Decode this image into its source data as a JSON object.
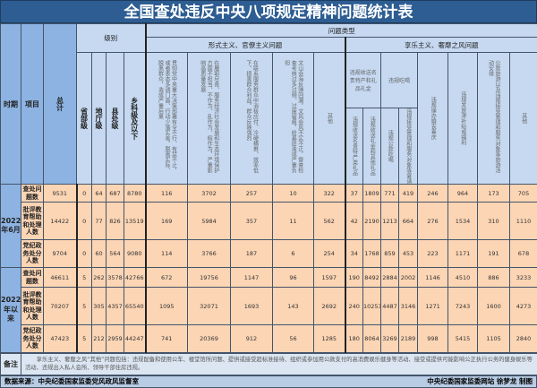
{
  "title": "全国查处违反中央八项规定精神问题统计表",
  "headers": {
    "period": "时期",
    "item": "项目",
    "total": "总计",
    "level": "级别",
    "levels": [
      "省部级",
      "地厅级",
      "县处级",
      "乡科级及以下"
    ],
    "problem_type": "问题类型",
    "formalism": "形式主义、官僚主义问题",
    "formalism_cols": [
      "贯彻党中央重大决策部署有令不行、有禁不止，或者表态多调门高、行动少落实差，脱离实际、脱离群众，造成严重后果",
      "在履职尽责、服务经济社会发展和生态环境保护方面不担当、不作为、乱作为、假作为，严重影响高质量发展",
      "在联系服务群众中消极应付、冷硬横推、效率低下，损害群众利益，群众反映强烈",
      "文山会海反弹回潮，文风会风不实不正，督查检查考核过多过频、过度留痕，给基层造成严重负担",
      "其他"
    ],
    "hedonism": "享乐主义、奢靡之风问题",
    "gifts": "违规收送名贵特产和礼品礼金",
    "gifts_sub": [
      "违规收送名贵特产类礼品",
      "违规收送礼金和其他礼品"
    ],
    "dining": "违规吃喝",
    "dining_sub": [
      "违规公款吃喝",
      "违规接受管理和服务对象等宴请"
    ],
    "hedonism_cols": [
      "违规操办婚丧喜庆",
      "违规发放津补贴或福利",
      "公款旅游以及违规接受管理和服务对象等旅游活动安排",
      "其他"
    ]
  },
  "periods": [
    {
      "label": "2022年6月",
      "rows": [
        {
          "item": "查处问题数",
          "values": [
            9531,
            0,
            64,
            687,
            8780,
            116,
            3702,
            257,
            10,
            322,
            37,
            1809,
            771,
            419,
            246,
            964,
            173,
            705
          ]
        },
        {
          "item": "批评教育帮助和处理人数",
          "values": [
            14422,
            0,
            77,
            826,
            13519,
            169,
            5984,
            357,
            11,
            562,
            42,
            2190,
            1213,
            664,
            276,
            1534,
            310,
            1110
          ]
        },
        {
          "item": "党纪政务处分人数",
          "values": [
            9704,
            0,
            60,
            564,
            9080,
            114,
            3766,
            187,
            6,
            254,
            34,
            1768,
            859,
            453,
            223,
            1171,
            191,
            678
          ]
        }
      ]
    },
    {
      "label": "2022年以来",
      "rows": [
        {
          "item": "查处问题数",
          "values": [
            46611,
            5,
            262,
            3578,
            42766,
            672,
            19756,
            1147,
            96,
            1597,
            190,
            8492,
            2884,
            2002,
            1146,
            4510,
            886,
            3233
          ]
        },
        {
          "item": "批评教育帮助和处理人数",
          "values": [
            70207,
            5,
            305,
            4357,
            65540,
            1095,
            32071,
            1693,
            143,
            2692,
            240,
            10253,
            4487,
            3146,
            1271,
            7243,
            1600,
            4273
          ]
        },
        {
          "item": "党纪政务处分人数",
          "values": [
            47423,
            5,
            212,
            2959,
            44247,
            741,
            20369,
            912,
            56,
            1285,
            180,
            8064,
            3269,
            2189,
            998,
            5415,
            1105,
            2840
          ]
        }
      ]
    }
  ],
  "note_label": "备注",
  "note": "享乐主义、奢靡之风“其他”问题包括：违规配备和使用公车、楼堂馆所问题、提供或接受超标准接待、组织或参加用公款支付的高消费娱乐健身等活动、接受或提供可能影响公正执行公务的健身娱乐等活动、违规出入私人会所、领导干部住房违规。",
  "source": "数据来源：中央纪委国家监委党风政风监督室",
  "credit": "中央纪委国家监委网站 徐梦龙 制图",
  "colors": {
    "title_bg": "#2d5d92",
    "header_bg": "#c6d9f1",
    "label_bg": "#8db3e2",
    "cell_bg": "#fcd5b4"
  }
}
